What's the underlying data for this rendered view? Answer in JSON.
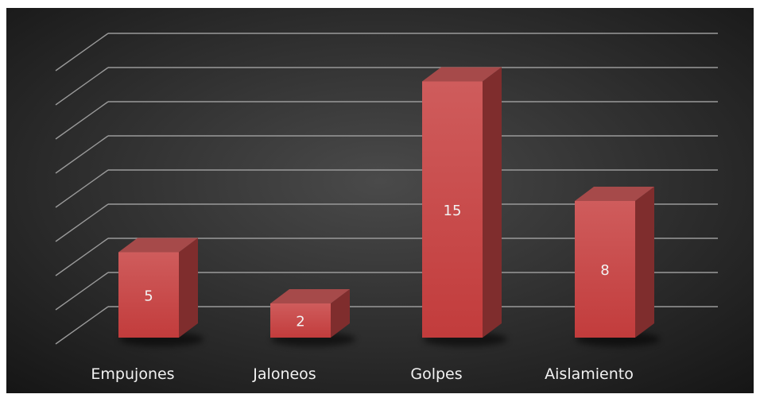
{
  "chart_data": {
    "type": "bar",
    "title": "",
    "xlabel": "",
    "ylabel": "",
    "categories": [
      "Empujones",
      "Jaloneos",
      "Golpes",
      "Aislamiento"
    ],
    "values": [
      5,
      2,
      15,
      8
    ],
    "data_labels": [
      "5",
      "2",
      "15",
      "8"
    ],
    "ylim": [
      0,
      16
    ],
    "grid": true,
    "legend": "none",
    "three_d": true
  },
  "colors": {
    "background_center": "#4a4a4a",
    "background_edge": "#151515",
    "bar_front": "#c94343",
    "bar_top": "#a64a4a",
    "bar_side": "#7f2d2d",
    "gridline": "#9a9a9a",
    "text": "#f2f2f2"
  }
}
